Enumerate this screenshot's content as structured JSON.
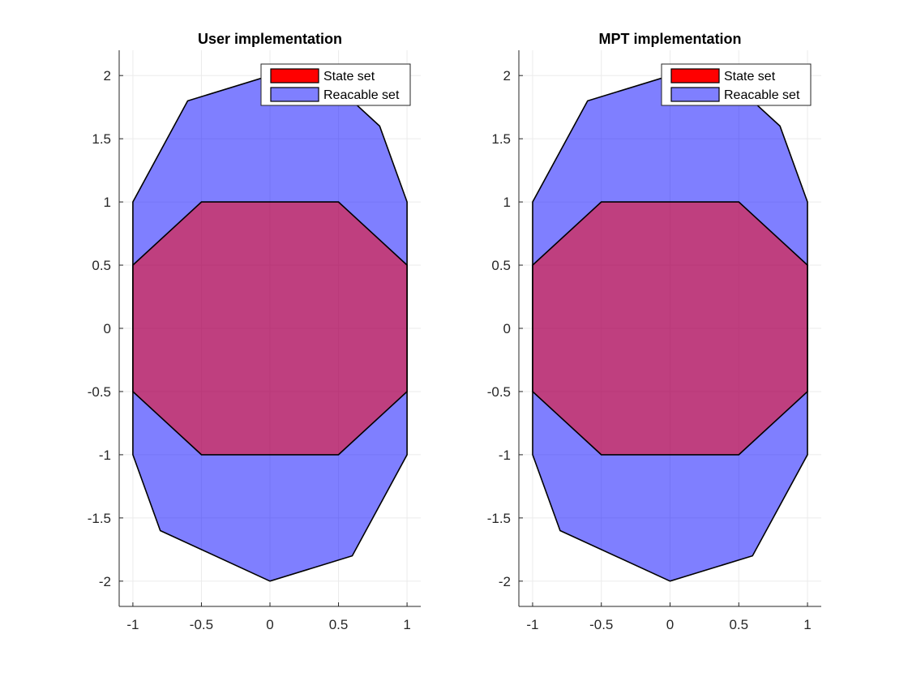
{
  "chart_data": [
    {
      "type": "area",
      "title": "User implementation",
      "xlabel": "",
      "ylabel": "",
      "xlim": [
        -1.1,
        1.1
      ],
      "ylim": [
        -2.2,
        2.2
      ],
      "x_ticks": [
        -1,
        -0.5,
        0,
        0.5,
        1
      ],
      "x_tick_labels": [
        "-1",
        "-0.5",
        "0",
        "0.5",
        "1"
      ],
      "y_ticks": [
        2,
        1.5,
        1,
        0.5,
        0,
        -0.5,
        -1,
        -1.5,
        -2
      ],
      "y_tick_labels": [
        "2",
        "1.5",
        "1",
        "0.5",
        "0",
        "-0.5",
        "-1",
        "-1.5",
        "-2"
      ],
      "grid": true,
      "legend_position": "top-right",
      "series": [
        {
          "name": "State set",
          "color": "#ff0000",
          "points": [
            [
              -0.5,
              1
            ],
            [
              0.5,
              1
            ],
            [
              1,
              0.5
            ],
            [
              1,
              -0.5
            ],
            [
              0.5,
              -1
            ],
            [
              -0.5,
              -1
            ],
            [
              -1,
              -0.5
            ],
            [
              -1,
              0.5
            ]
          ]
        },
        {
          "name": "Reacable set",
          "color": "#0000ff",
          "points": [
            [
              0,
              2
            ],
            [
              0.6,
              1.8
            ],
            [
              0.8,
              1.6
            ],
            [
              1,
              1
            ],
            [
              1,
              -1
            ],
            [
              0.6,
              -1.8
            ],
            [
              0,
              -2
            ],
            [
              -0.8,
              -1.6
            ],
            [
              -1,
              -1
            ],
            [
              -1,
              1
            ],
            [
              -0.6,
              1.8
            ]
          ]
        }
      ]
    },
    {
      "type": "area",
      "title": "MPT implementation",
      "xlabel": "",
      "ylabel": "",
      "xlim": [
        -1.1,
        1.1
      ],
      "ylim": [
        -2.2,
        2.2
      ],
      "x_ticks": [
        -1,
        -0.5,
        0,
        0.5,
        1
      ],
      "x_tick_labels": [
        "-1",
        "-0.5",
        "0",
        "0.5",
        "1"
      ],
      "y_ticks": [
        2,
        1.5,
        1,
        0.5,
        0,
        -0.5,
        -1,
        -1.5,
        -2
      ],
      "y_tick_labels": [
        "2",
        "1.5",
        "1",
        "0.5",
        "0",
        "-0.5",
        "-1",
        "-1.5",
        "-2"
      ],
      "grid": true,
      "legend_position": "top-right",
      "series": [
        {
          "name": "State set",
          "color": "#ff0000",
          "points": [
            [
              -0.5,
              1
            ],
            [
              0.5,
              1
            ],
            [
              1,
              0.5
            ],
            [
              1,
              -0.5
            ],
            [
              0.5,
              -1
            ],
            [
              -0.5,
              -1
            ],
            [
              -1,
              -0.5
            ],
            [
              -1,
              0.5
            ]
          ]
        },
        {
          "name": "Reacable set",
          "color": "#0000ff",
          "points": [
            [
              0,
              2
            ],
            [
              0.6,
              1.8
            ],
            [
              0.8,
              1.6
            ],
            [
              1,
              1
            ],
            [
              1,
              -1
            ],
            [
              0.6,
              -1.8
            ],
            [
              0,
              -2
            ],
            [
              -0.8,
              -1.6
            ],
            [
              -1,
              -1
            ],
            [
              -1,
              1
            ],
            [
              -0.6,
              1.8
            ]
          ]
        }
      ]
    }
  ]
}
